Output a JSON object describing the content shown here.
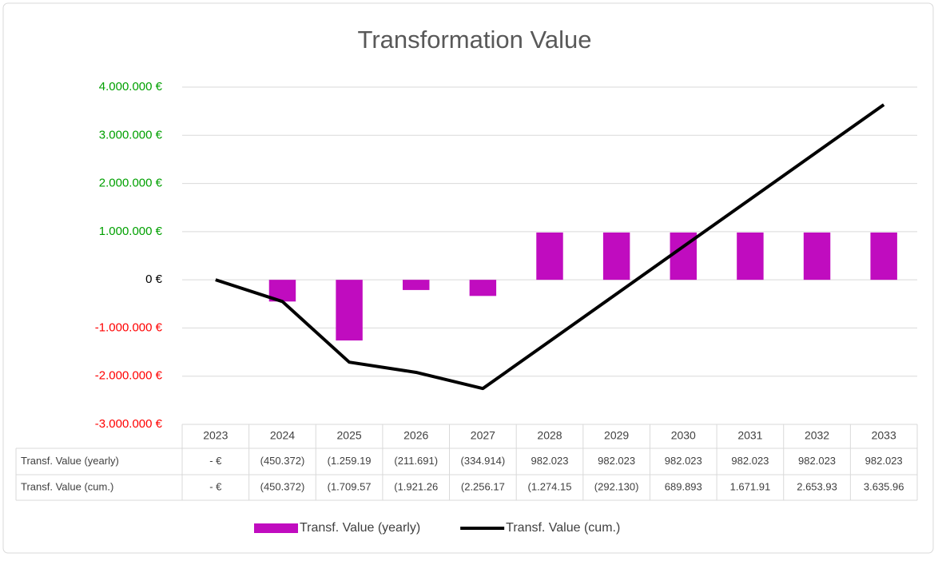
{
  "chart_data": {
    "type": "bar-line",
    "title": "Transformation Value",
    "categories": [
      "2023",
      "2024",
      "2025",
      "2026",
      "2027",
      "2028",
      "2029",
      "2030",
      "2031",
      "2032",
      "2033"
    ],
    "series": [
      {
        "name": "Transf. Value (yearly)",
        "type": "bar",
        "color": "#c00cbf",
        "values": [
          0,
          -450372,
          -1259199,
          -211691,
          -334914,
          982023,
          982023,
          982023,
          982023,
          982023,
          982023
        ],
        "value_labels": [
          "-   €",
          "(450.372)",
          "(1.259.19",
          "(211.691)",
          "(334.914)",
          "982.023",
          "982.023",
          "982.023",
          "982.023",
          "982.023",
          "982.023"
        ]
      },
      {
        "name": "Transf. Value (cum.)",
        "type": "line",
        "color": "#000000",
        "values": [
          0,
          -450372,
          -1709571,
          -1921262,
          -2256176,
          -1274153,
          -292130,
          689893,
          1671916,
          2653939,
          3635962
        ],
        "value_labels": [
          "-   €",
          "(450.372)",
          "(1.709.57",
          "(1.921.26",
          "(2.256.17",
          "(1.274.15",
          "(292.130)",
          "689.893",
          "1.671.91",
          "2.653.93",
          "3.635.96"
        ]
      }
    ],
    "ylim": [
      -3000000,
      4000000
    ],
    "yticks": [
      {
        "value": -3000000,
        "label": "-3.000.000 €"
      },
      {
        "value": -2000000,
        "label": "-2.000.000 €"
      },
      {
        "value": -1000000,
        "label": "-1.000.000 €"
      },
      {
        "value": 0,
        "label": "0 €"
      },
      {
        "value": 1000000,
        "label": "1.000.000 €"
      },
      {
        "value": 2000000,
        "label": "2.000.000 €"
      },
      {
        "value": 3000000,
        "label": "3.000.000 €"
      },
      {
        "value": 4000000,
        "label": "4.000.000 €"
      }
    ],
    "grid": true,
    "tick_colors": {
      "positive": "#00a000",
      "zero": "#000000",
      "negative": "#ff0000"
    },
    "legend": "bottom"
  }
}
